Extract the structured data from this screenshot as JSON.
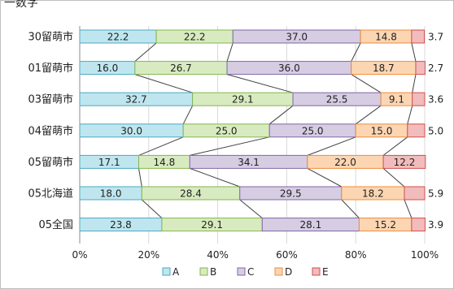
{
  "top_text": "一数字",
  "chart_data": {
    "type": "bar",
    "stacked": "percent",
    "orientation": "horizontal",
    "categories": [
      "30留萌市",
      "01留萌市",
      "03留萌市",
      "04留萌市",
      "05留萌市",
      "05北海道",
      "05全国"
    ],
    "series": [
      {
        "name": "A",
        "color": "#bfe6ef",
        "border": "#4ba9c2",
        "values": [
          22.2,
          16.0,
          32.7,
          30.0,
          17.1,
          18.0,
          23.8
        ],
        "labels": [
          "22.2",
          "16.0",
          "32.7",
          "30.0",
          "17.1",
          "18.0",
          "23.8"
        ]
      },
      {
        "name": "B",
        "color": "#d8ebc0",
        "border": "#86b64d",
        "values": [
          22.2,
          26.7,
          29.1,
          25.0,
          14.8,
          28.4,
          29.1
        ],
        "labels": [
          "22.2",
          "26.7",
          "29.1",
          "25.0",
          "14.8",
          "28.4",
          "29.1"
        ]
      },
      {
        "name": "C",
        "color": "#d6cde3",
        "border": "#8067a6",
        "values": [
          37.0,
          36.0,
          25.5,
          25.0,
          34.1,
          29.5,
          28.1
        ],
        "labels": [
          "37.0",
          "36.0",
          "25.5",
          "25.0",
          "34.1",
          "29.5",
          "28.1"
        ]
      },
      {
        "name": "D",
        "color": "#fcd6b3",
        "border": "#ef8c3a",
        "values": [
          14.8,
          18.7,
          9.1,
          15.0,
          22.0,
          18.2,
          15.2
        ],
        "labels": [
          "14.8",
          "18.7",
          "9.1",
          "15.0",
          "22.0",
          "18.2",
          "15.2"
        ]
      },
      {
        "name": "E",
        "color": "#f1bcbb",
        "border": "#d0504e",
        "values": [
          3.7,
          2.7,
          3.6,
          5.0,
          12.2,
          5.9,
          3.9
        ],
        "labels": [
          "3.7",
          "2.7",
          "3.6",
          "5.0",
          "12.2",
          "5.9",
          "3.9"
        ]
      }
    ],
    "x_ticks": [
      "0%",
      "20%",
      "40%",
      "60%",
      "80%",
      "100%"
    ],
    "xlim": [
      0,
      100
    ],
    "grid": true,
    "series_lines": true,
    "legend_position": "bottom"
  }
}
